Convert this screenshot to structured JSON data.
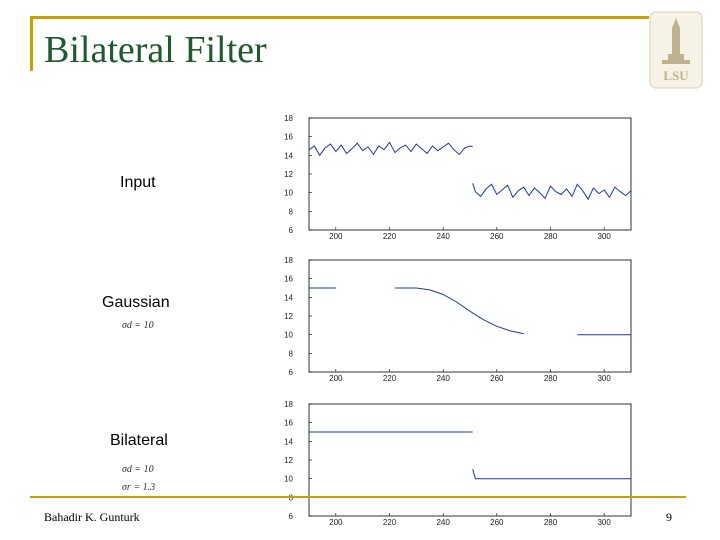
{
  "slide": {
    "title": "Bilateral Filter",
    "footer_author": "Bahadir K. Gunturk",
    "page_number": "9",
    "logo_text": "LSU",
    "accent_color": "#c8a000",
    "title_color": "#1e5a2b"
  },
  "rows": [
    {
      "label": "Input"
    },
    {
      "label": "Gaussian",
      "params": [
        "σd = 10"
      ]
    },
    {
      "label": "Bilateral",
      "params": [
        "σd = 10",
        "σr = 1.3"
      ]
    }
  ],
  "chart_data": [
    {
      "type": "line",
      "xlim": [
        190,
        310
      ],
      "ylim": [
        6,
        18
      ],
      "x_ticks": [
        "200",
        "220",
        "240",
        "260",
        "280",
        "300"
      ],
      "y_ticks": [
        "6",
        "8",
        "10",
        "12",
        "14",
        "16",
        "18"
      ],
      "line_color": "#1f3a9e",
      "segments": [
        {
          "x": [
            190,
            192,
            194,
            196,
            198,
            200,
            202,
            204,
            206,
            208,
            210,
            212,
            214,
            216,
            218,
            220,
            222,
            224,
            226,
            228,
            230,
            232,
            234,
            236,
            238,
            240,
            242,
            244,
            246,
            248,
            250,
            251
          ],
          "y": [
            14.6,
            15.0,
            14.0,
            14.8,
            15.2,
            14.4,
            15.1,
            14.2,
            14.7,
            15.3,
            14.5,
            14.9,
            14.1,
            15.0,
            14.6,
            15.4,
            14.3,
            14.8,
            15.1,
            14.4,
            15.2,
            14.7,
            14.2,
            15.0,
            14.5,
            14.9,
            15.3,
            14.6,
            14.1,
            14.8,
            15.0,
            14.9
          ]
        },
        {
          "x": [
            251,
            252,
            254,
            256,
            258,
            260,
            262,
            264,
            266,
            268,
            270,
            272,
            274,
            276,
            278,
            280,
            282,
            284,
            286,
            288,
            290,
            292,
            294,
            296,
            298,
            300,
            302,
            304,
            306,
            308,
            310
          ],
          "y": [
            11.0,
            10.1,
            9.6,
            10.4,
            10.9,
            9.8,
            10.3,
            10.8,
            9.5,
            10.2,
            10.6,
            9.7,
            10.5,
            10.0,
            9.4,
            10.7,
            10.1,
            9.8,
            10.4,
            9.6,
            10.9,
            10.2,
            9.3,
            10.5,
            9.9,
            10.3,
            9.5,
            10.6,
            10.1,
            9.7,
            10.2
          ]
        }
      ]
    },
    {
      "type": "line",
      "xlim": [
        190,
        310
      ],
      "ylim": [
        6,
        18
      ],
      "x_ticks": [
        "200",
        "220",
        "240",
        "260",
        "280",
        "300"
      ],
      "y_ticks": [
        "6",
        "8",
        "10",
        "12",
        "14",
        "16",
        "18"
      ],
      "line_color": "#1f3a9e",
      "segments": [
        {
          "x": [
            190,
            200
          ],
          "y": [
            15,
            15
          ]
        },
        {
          "x": [
            222,
            230,
            235,
            240,
            245,
            250,
            255,
            260,
            265,
            270
          ],
          "y": [
            15,
            15,
            14.8,
            14.3,
            13.5,
            12.5,
            11.6,
            10.9,
            10.4,
            10.1
          ]
        },
        {
          "x": [
            290,
            310
          ],
          "y": [
            10,
            10
          ]
        }
      ]
    },
    {
      "type": "line",
      "xlim": [
        190,
        310
      ],
      "ylim": [
        6,
        18
      ],
      "x_ticks": [
        "200",
        "220",
        "240",
        "260",
        "280",
        "300"
      ],
      "y_ticks": [
        "6",
        "8",
        "10",
        "12",
        "14",
        "16",
        "18"
      ],
      "line_color": "#1f3a9e",
      "segments": [
        {
          "x": [
            190,
            200,
            210,
            220,
            230,
            240,
            250,
            251
          ],
          "y": [
            15,
            15,
            15,
            15,
            15,
            15,
            15,
            15
          ]
        },
        {
          "x": [
            251,
            252,
            260,
            270,
            280,
            290,
            300,
            310
          ],
          "y": [
            11,
            10,
            10,
            10,
            10,
            10,
            10,
            10
          ]
        }
      ]
    }
  ]
}
